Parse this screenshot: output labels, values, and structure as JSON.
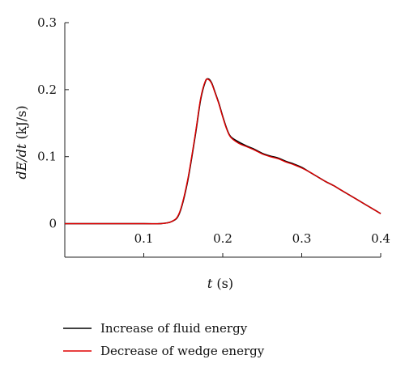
{
  "chart_data": {
    "type": "line",
    "title": "",
    "xlabel": "t (s)",
    "ylabel": "dE/dt (kJ/s)",
    "xlim": [
      0,
      0.4
    ],
    "ylim": [
      -0.05,
      0.3
    ],
    "x_ticks": [
      0.1,
      0.2,
      0.3,
      0.4
    ],
    "x_tick_labels": [
      "0.1",
      "0.2",
      "0.3",
      "0.4"
    ],
    "y_ticks": [
      0,
      0.1,
      0.2,
      0.3
    ],
    "y_tick_labels": [
      "0",
      "0.1",
      "0.2",
      "0.3"
    ],
    "grid": false,
    "legend_position": "bottom",
    "series": [
      {
        "name": "Increase of fluid energy",
        "color": "#000000",
        "points": [
          [
            0.0,
            0.0
          ],
          [
            0.05,
            0.0
          ],
          [
            0.1,
            0.0
          ],
          [
            0.12,
            0.0
          ],
          [
            0.135,
            0.003
          ],
          [
            0.145,
            0.015
          ],
          [
            0.155,
            0.06
          ],
          [
            0.165,
            0.13
          ],
          [
            0.172,
            0.185
          ],
          [
            0.178,
            0.212
          ],
          [
            0.182,
            0.216
          ],
          [
            0.186,
            0.21
          ],
          [
            0.19,
            0.197
          ],
          [
            0.195,
            0.18
          ],
          [
            0.2,
            0.16
          ],
          [
            0.205,
            0.142
          ],
          [
            0.21,
            0.13
          ],
          [
            0.22,
            0.122
          ],
          [
            0.23,
            0.116
          ],
          [
            0.24,
            0.111
          ],
          [
            0.25,
            0.105
          ],
          [
            0.26,
            0.101
          ],
          [
            0.27,
            0.098
          ],
          [
            0.28,
            0.093
          ],
          [
            0.29,
            0.089
          ],
          [
            0.3,
            0.084
          ],
          [
            0.31,
            0.077
          ],
          [
            0.32,
            0.07
          ],
          [
            0.33,
            0.063
          ],
          [
            0.34,
            0.057
          ],
          [
            0.35,
            0.05
          ],
          [
            0.36,
            0.043
          ],
          [
            0.37,
            0.036
          ],
          [
            0.38,
            0.029
          ],
          [
            0.39,
            0.022
          ],
          [
            0.4,
            0.015
          ]
        ]
      },
      {
        "name": "Decrease of wedge energy",
        "color": "#e00000",
        "points": [
          [
            0.0,
            0.0
          ],
          [
            0.05,
            0.0
          ],
          [
            0.1,
            0.0
          ],
          [
            0.12,
            0.0
          ],
          [
            0.135,
            0.003
          ],
          [
            0.145,
            0.016
          ],
          [
            0.155,
            0.062
          ],
          [
            0.165,
            0.132
          ],
          [
            0.172,
            0.187
          ],
          [
            0.178,
            0.213
          ],
          [
            0.182,
            0.215
          ],
          [
            0.186,
            0.209
          ],
          [
            0.19,
            0.196
          ],
          [
            0.195,
            0.179
          ],
          [
            0.2,
            0.159
          ],
          [
            0.205,
            0.141
          ],
          [
            0.21,
            0.129
          ],
          [
            0.22,
            0.12
          ],
          [
            0.23,
            0.115
          ],
          [
            0.24,
            0.11
          ],
          [
            0.25,
            0.104
          ],
          [
            0.26,
            0.1
          ],
          [
            0.27,
            0.097
          ],
          [
            0.28,
            0.092
          ],
          [
            0.29,
            0.088
          ],
          [
            0.3,
            0.083
          ],
          [
            0.31,
            0.077
          ],
          [
            0.32,
            0.07
          ],
          [
            0.33,
            0.063
          ],
          [
            0.34,
            0.057
          ],
          [
            0.35,
            0.05
          ],
          [
            0.36,
            0.043
          ],
          [
            0.37,
            0.036
          ],
          [
            0.38,
            0.029
          ],
          [
            0.39,
            0.022
          ],
          [
            0.4,
            0.015
          ]
        ]
      }
    ]
  }
}
